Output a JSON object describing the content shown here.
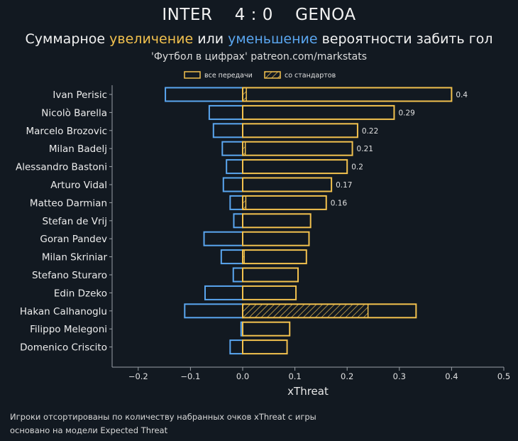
{
  "header": {
    "team_home": "INTER",
    "score": "4 : 0",
    "team_away": "GENOA",
    "subtitle_part1": "Суммарное",
    "subtitle_increase": "увеличение",
    "subtitle_part2": "или",
    "subtitle_decrease": "уменьшение",
    "subtitle_part3": "вероятности забить гол",
    "source": "'Футбол в цифрах' patreon.com/markstats"
  },
  "colors": {
    "background": "#121921",
    "positive": "#f2c14e",
    "negative": "#5aa6f0",
    "axis": "#9aa0a6"
  },
  "chart_data": {
    "type": "bar",
    "orientation": "horizontal",
    "xlabel": "xThreat",
    "xlim": [
      -0.25,
      0.5
    ],
    "xticks": [
      -0.2,
      -0.1,
      0.0,
      0.1,
      0.2,
      0.3,
      0.4,
      0.5
    ],
    "xtick_labels": [
      "−0.2",
      "−0.1",
      "0.0",
      "0.1",
      "0.2",
      "0.3",
      "0.4",
      "0.5"
    ],
    "legend": [
      "все передачи",
      "со стандартов"
    ],
    "legend_position": "top",
    "categories": [
      "Ivan Perisic",
      "Nicolò Barella",
      "Marcelo Brozovic",
      "Milan Badelj",
      "Alessandro Bastoni",
      "Arturo Vidal",
      "Matteo Darmian",
      "Stefan de Vrij",
      "Goran Pandev",
      "Milan Skriniar",
      "Stefano Sturaro",
      "Edin Dzeko",
      "Hakan Calhanoglu",
      "Filippo Melegoni",
      "Domenico Criscito"
    ],
    "series": [
      {
        "name": "увеличение (все передачи)",
        "values": [
          0.4,
          0.29,
          0.22,
          0.21,
          0.2,
          0.17,
          0.16,
          0.13,
          0.127,
          0.122,
          0.106,
          0.102,
          0.332,
          0.09,
          0.085
        ]
      },
      {
        "name": "уменьшение (все передачи)",
        "values": [
          -0.148,
          -0.064,
          -0.056,
          -0.039,
          -0.031,
          -0.037,
          -0.024,
          -0.017,
          -0.074,
          -0.041,
          -0.018,
          -0.072,
          -0.111,
          -0.003,
          -0.024
        ]
      },
      {
        "name": "со стандартов",
        "values": [
          0.007,
          0,
          0,
          0.005,
          0,
          0,
          0.006,
          0,
          0,
          0.003,
          0,
          0,
          0.24,
          0,
          0
        ]
      }
    ],
    "value_labels": [
      "0.4",
      "0.29",
      "0.22",
      "0.21",
      "0.2",
      "0.17",
      "0.16",
      "",
      "",
      "",
      "",
      "",
      "",
      "",
      ""
    ]
  },
  "footer": {
    "line1": "Игроки отсортированы по количеству набранных очков xThreat с игры",
    "line2": "основано на модели Expected Threat"
  }
}
